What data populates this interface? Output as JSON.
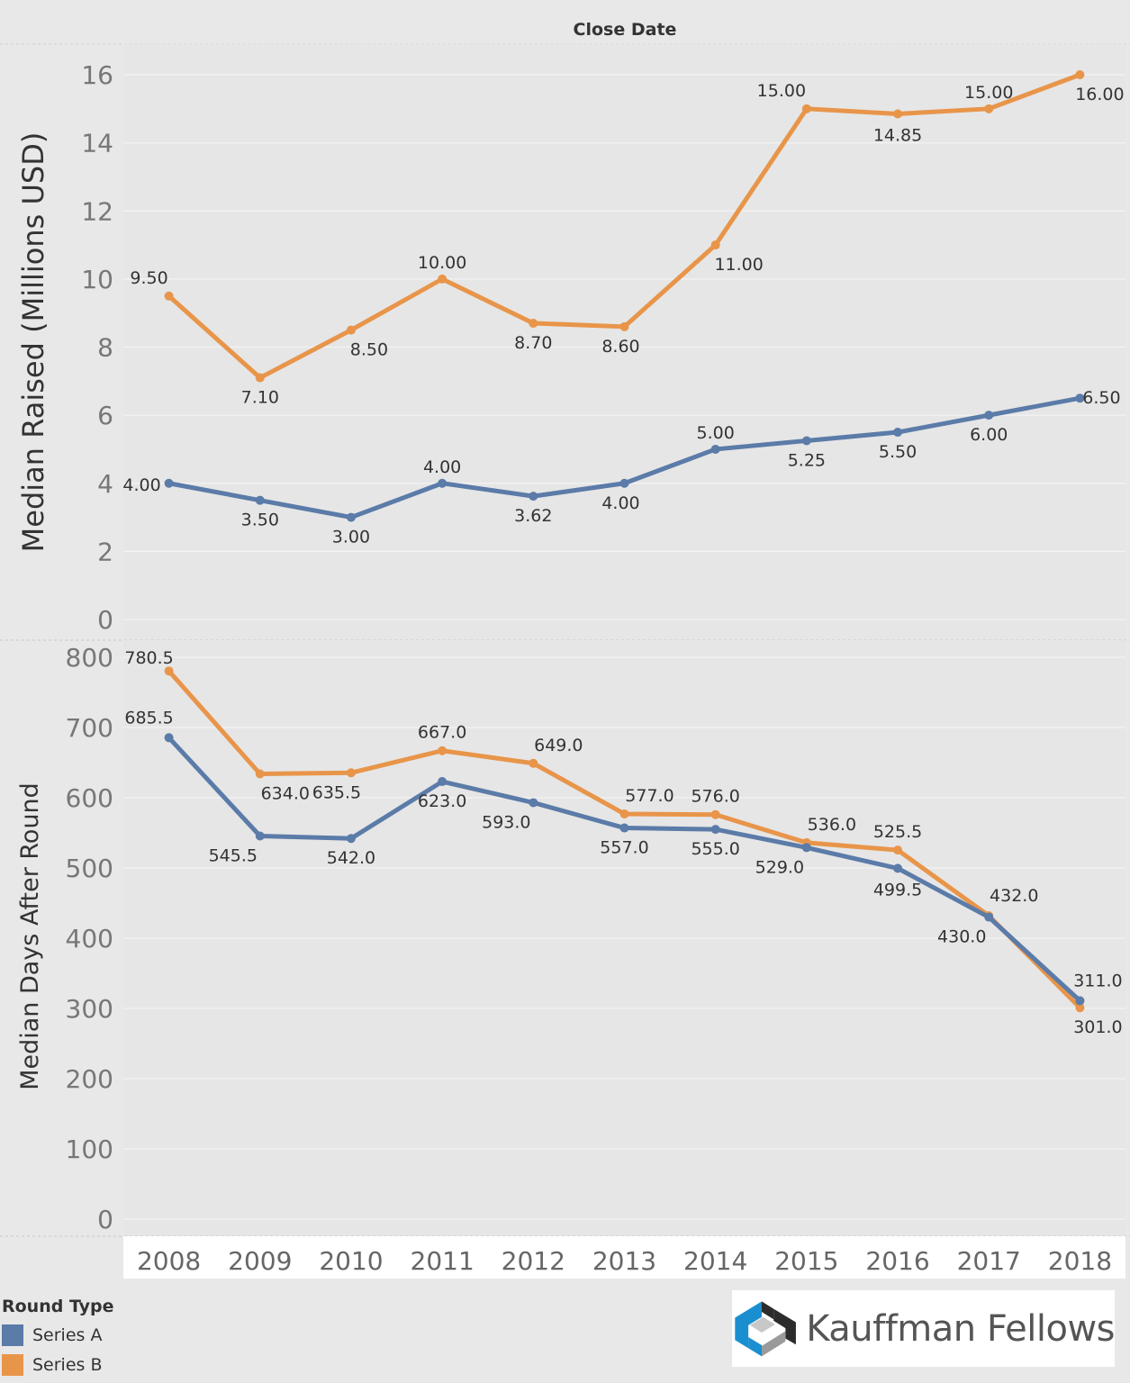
{
  "chart_data": {
    "type": "line",
    "header": "Close Date",
    "categories": [
      "2008",
      "2009",
      "2010",
      "2011",
      "2012",
      "2013",
      "2014",
      "2015",
      "2016",
      "2017",
      "2018"
    ],
    "panels": [
      {
        "ylabel": "Median Raised (Millions USD)",
        "ylim": [
          0,
          16
        ],
        "yticks": [
          0,
          2,
          4,
          6,
          8,
          10,
          12,
          14,
          16
        ],
        "series": [
          {
            "name": "Series B",
            "color": "#e8954a",
            "values": [
              9.5,
              7.1,
              8.5,
              10.0,
              8.7,
              8.6,
              11.0,
              15.0,
              14.85,
              15.0,
              16.0
            ],
            "labels": [
              "9.50",
              "7.10",
              "8.50",
              "10.00",
              "8.70",
              "8.60",
              "11.00",
              "15.00",
              "14.85",
              "15.00",
              "16.00"
            ]
          },
          {
            "name": "Series A",
            "color": "#5b7ba8",
            "values": [
              4.0,
              3.5,
              3.0,
              4.0,
              3.62,
              4.0,
              5.0,
              5.25,
              5.5,
              6.0,
              6.5
            ],
            "labels": [
              "4.00",
              "3.50",
              "3.00",
              "4.00",
              "3.62",
              "4.00",
              "5.00",
              "5.25",
              "5.50",
              "6.00",
              "6.50"
            ]
          }
        ]
      },
      {
        "ylabel": "Median Days After Round",
        "ylim": [
          0,
          800
        ],
        "yticks": [
          0,
          100,
          200,
          300,
          400,
          500,
          600,
          700,
          800
        ],
        "series": [
          {
            "name": "Series B",
            "color": "#e8954a",
            "values": [
              780.5,
              634.0,
              635.5,
              667.0,
              649.0,
              577.0,
              576.0,
              536.0,
              525.5,
              432.0,
              301.0
            ],
            "labels": [
              "780.5",
              "634.0",
              "635.5",
              "667.0",
              "649.0",
              "577.0",
              "576.0",
              "536.0",
              "525.5",
              "432.0",
              "301.0"
            ]
          },
          {
            "name": "Series A",
            "color": "#5b7ba8",
            "values": [
              685.5,
              545.5,
              542.0,
              623.0,
              593.0,
              557.0,
              555.0,
              529.0,
              499.5,
              430.0,
              311.0
            ],
            "labels": [
              "685.5",
              "545.5",
              "542.0",
              "623.0",
              "593.0",
              "557.0",
              "555.0",
              "529.0",
              "499.5",
              "430.0",
              "311.0"
            ]
          }
        ]
      }
    ]
  },
  "legend": {
    "title": "Round Type",
    "items": [
      {
        "label": "Series A",
        "color": "#5b7ba8"
      },
      {
        "label": "Series B",
        "color": "#e8954a"
      }
    ]
  },
  "logo": {
    "text": "Kauffman Fellows"
  }
}
